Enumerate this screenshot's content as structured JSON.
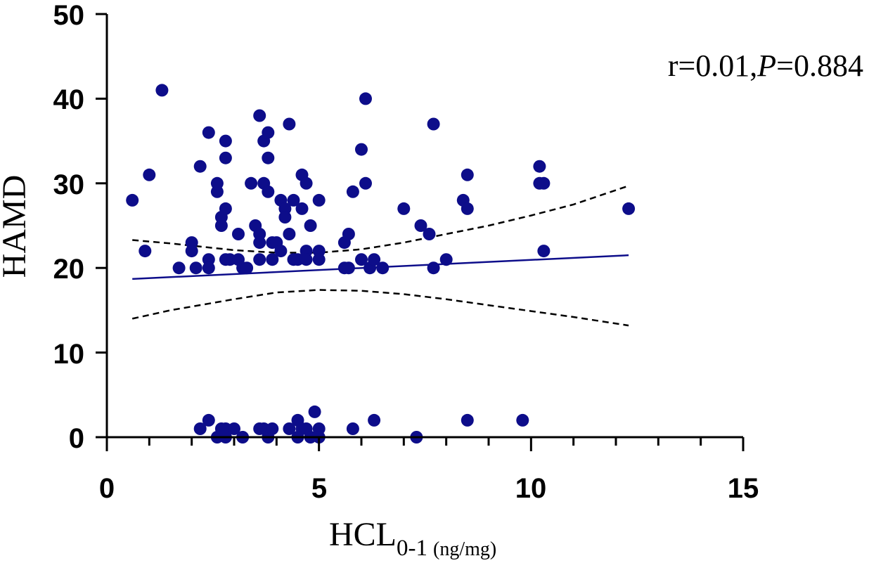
{
  "chart_data": {
    "type": "scatter",
    "title": "",
    "xlabel": "HCL",
    "xlabel_subscript": "0-1",
    "xlabel_units": "(ng/mg)",
    "ylabel": "HAMD",
    "xlim": [
      0,
      15
    ],
    "ylim": [
      0,
      50
    ],
    "x_ticks": [
      "0",
      "5",
      "10",
      "15"
    ],
    "y_ticks": [
      "0",
      "10",
      "20",
      "30",
      "40",
      "50"
    ],
    "grid": false,
    "annotation": {
      "r_text": "r=0.01,",
      "p_label": "P",
      "p_value_text": "=0.884"
    },
    "colors": {
      "points": "#0d0d8a",
      "fit": "#0d0d8a",
      "ci": "#000000"
    },
    "fit_line": {
      "x": [
        0.6,
        12.3
      ],
      "y": [
        18.7,
        21.5
      ]
    },
    "ci_upper": {
      "x": [
        0.6,
        1.5,
        3,
        4,
        5,
        6,
        7,
        8,
        9,
        10,
        11,
        12.3
      ],
      "y": [
        23.3,
        22.9,
        22.1,
        21.8,
        21.8,
        22.2,
        23.0,
        24.0,
        25.0,
        26.2,
        27.5,
        29.7
      ]
    },
    "ci_lower": {
      "x": [
        0.6,
        1.5,
        3,
        4,
        5,
        6,
        7,
        8,
        9,
        10,
        11,
        12.3
      ],
      "y": [
        14.0,
        15.0,
        16.3,
        17.1,
        17.4,
        17.3,
        16.9,
        16.3,
        15.6,
        14.9,
        14.2,
        13.2
      ]
    },
    "points": [
      {
        "x": 0.6,
        "y": 28
      },
      {
        "x": 0.9,
        "y": 22
      },
      {
        "x": 1.0,
        "y": 31
      },
      {
        "x": 1.3,
        "y": 41
      },
      {
        "x": 1.7,
        "y": 20
      },
      {
        "x": 2.0,
        "y": 23
      },
      {
        "x": 2.0,
        "y": 22
      },
      {
        "x": 2.1,
        "y": 20
      },
      {
        "x": 2.2,
        "y": 32
      },
      {
        "x": 2.4,
        "y": 36
      },
      {
        "x": 2.4,
        "y": 21
      },
      {
        "x": 2.4,
        "y": 20
      },
      {
        "x": 2.6,
        "y": 29
      },
      {
        "x": 2.6,
        "y": 30
      },
      {
        "x": 2.7,
        "y": 25
      },
      {
        "x": 2.7,
        "y": 26
      },
      {
        "x": 2.8,
        "y": 35
      },
      {
        "x": 2.8,
        "y": 33
      },
      {
        "x": 2.8,
        "y": 27
      },
      {
        "x": 2.8,
        "y": 21
      },
      {
        "x": 2.9,
        "y": 21
      },
      {
        "x": 3.1,
        "y": 24
      },
      {
        "x": 3.1,
        "y": 21
      },
      {
        "x": 3.2,
        "y": 20
      },
      {
        "x": 3.3,
        "y": 20
      },
      {
        "x": 3.4,
        "y": 30
      },
      {
        "x": 3.5,
        "y": 25
      },
      {
        "x": 3.6,
        "y": 38
      },
      {
        "x": 3.6,
        "y": 24
      },
      {
        "x": 3.6,
        "y": 23
      },
      {
        "x": 3.6,
        "y": 21
      },
      {
        "x": 3.7,
        "y": 35
      },
      {
        "x": 3.7,
        "y": 30
      },
      {
        "x": 3.8,
        "y": 36
      },
      {
        "x": 3.8,
        "y": 33
      },
      {
        "x": 3.8,
        "y": 29
      },
      {
        "x": 3.9,
        "y": 23
      },
      {
        "x": 3.9,
        "y": 21
      },
      {
        "x": 4.0,
        "y": 23
      },
      {
        "x": 4.1,
        "y": 28
      },
      {
        "x": 4.1,
        "y": 22
      },
      {
        "x": 4.2,
        "y": 27
      },
      {
        "x": 4.2,
        "y": 26
      },
      {
        "x": 4.3,
        "y": 37
      },
      {
        "x": 4.3,
        "y": 24
      },
      {
        "x": 4.4,
        "y": 28
      },
      {
        "x": 4.4,
        "y": 21
      },
      {
        "x": 4.5,
        "y": 21
      },
      {
        "x": 4.6,
        "y": 27
      },
      {
        "x": 4.6,
        "y": 31
      },
      {
        "x": 4.7,
        "y": 30
      },
      {
        "x": 4.7,
        "y": 22
      },
      {
        "x": 4.7,
        "y": 21
      },
      {
        "x": 4.8,
        "y": 25
      },
      {
        "x": 5.0,
        "y": 28
      },
      {
        "x": 5.0,
        "y": 22
      },
      {
        "x": 5.0,
        "y": 21
      },
      {
        "x": 5.6,
        "y": 23
      },
      {
        "x": 5.6,
        "y": 20
      },
      {
        "x": 5.7,
        "y": 24
      },
      {
        "x": 5.7,
        "y": 20
      },
      {
        "x": 5.8,
        "y": 29
      },
      {
        "x": 6.0,
        "y": 34
      },
      {
        "x": 6.0,
        "y": 21
      },
      {
        "x": 6.1,
        "y": 40
      },
      {
        "x": 6.1,
        "y": 30
      },
      {
        "x": 6.2,
        "y": 20
      },
      {
        "x": 6.3,
        "y": 21
      },
      {
        "x": 6.5,
        "y": 20
      },
      {
        "x": 7.0,
        "y": 27
      },
      {
        "x": 7.4,
        "y": 25
      },
      {
        "x": 7.6,
        "y": 24
      },
      {
        "x": 7.7,
        "y": 37
      },
      {
        "x": 7.7,
        "y": 20
      },
      {
        "x": 8.0,
        "y": 21
      },
      {
        "x": 8.4,
        "y": 28
      },
      {
        "x": 8.5,
        "y": 31
      },
      {
        "x": 8.5,
        "y": 27
      },
      {
        "x": 10.2,
        "y": 32
      },
      {
        "x": 10.2,
        "y": 30
      },
      {
        "x": 10.3,
        "y": 30
      },
      {
        "x": 10.3,
        "y": 22
      },
      {
        "x": 12.3,
        "y": 27
      },
      {
        "x": 2.2,
        "y": 1
      },
      {
        "x": 2.4,
        "y": 2
      },
      {
        "x": 2.6,
        "y": 0
      },
      {
        "x": 2.7,
        "y": 1
      },
      {
        "x": 2.8,
        "y": 0
      },
      {
        "x": 2.8,
        "y": 1
      },
      {
        "x": 3.0,
        "y": 1
      },
      {
        "x": 3.2,
        "y": 0
      },
      {
        "x": 3.6,
        "y": 1
      },
      {
        "x": 3.7,
        "y": 1
      },
      {
        "x": 3.8,
        "y": 0
      },
      {
        "x": 3.9,
        "y": 1
      },
      {
        "x": 4.3,
        "y": 1
      },
      {
        "x": 4.5,
        "y": 2
      },
      {
        "x": 4.5,
        "y": 0
      },
      {
        "x": 4.6,
        "y": 1
      },
      {
        "x": 4.7,
        "y": 1
      },
      {
        "x": 4.8,
        "y": 0
      },
      {
        "x": 4.9,
        "y": 3
      },
      {
        "x": 5.0,
        "y": 1
      },
      {
        "x": 5.0,
        "y": 0
      },
      {
        "x": 5.8,
        "y": 1
      },
      {
        "x": 6.3,
        "y": 2
      },
      {
        "x": 7.3,
        "y": 0
      },
      {
        "x": 8.5,
        "y": 2
      },
      {
        "x": 9.8,
        "y": 2
      }
    ]
  }
}
